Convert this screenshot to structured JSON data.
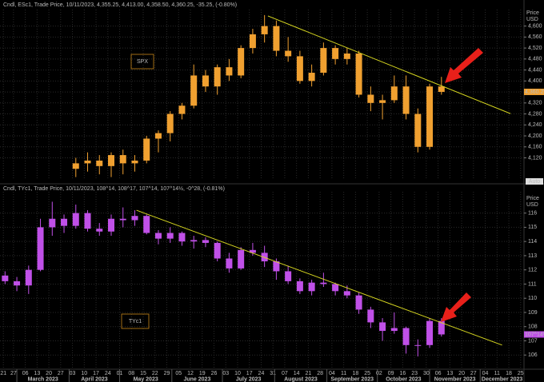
{
  "chart_data": [
    {
      "type": "candlestick",
      "header": "Cndl, ESc1, Trade Price, 10/11/2023, 4,355.25, 4,413.00, 4,358.50, 4,360.25, -35.25, (-0.80%)",
      "label": "SPX",
      "yaxis_title": [
        "Price",
        "USD"
      ],
      "button": "Auto",
      "color": "#f0a030",
      "label_color": "#c8861a",
      "xlim": [
        "2023-02-19",
        "2023-12-27"
      ],
      "ylim": [
        4040,
        4660
      ],
      "grid": true,
      "yticks": [
        {
          "value": 4120,
          "label": "4,120"
        },
        {
          "value": 4160,
          "label": "4,160"
        },
        {
          "value": 4200,
          "label": "4,200"
        },
        {
          "value": 4240,
          "label": "4,240"
        },
        {
          "value": 4280,
          "label": "4,280"
        },
        {
          "value": 4320,
          "label": "4,320"
        },
        {
          "value": 4360,
          "label": "4,360"
        },
        {
          "value": 4400,
          "label": "4,400"
        },
        {
          "value": 4440,
          "label": "4,440"
        },
        {
          "value": 4480,
          "label": "4,480"
        },
        {
          "value": 4520,
          "label": "4,520"
        },
        {
          "value": 4560,
          "label": "4,560"
        },
        {
          "value": 4600,
          "label": "4,600"
        }
      ],
      "x": [
        "2023-04-05",
        "2023-04-12",
        "2023-04-19",
        "2023-04-26",
        "2023-05-03",
        "2023-05-10",
        "2023-05-17",
        "2023-05-24",
        "2023-05-31",
        "2023-06-07",
        "2023-06-14",
        "2023-06-21",
        "2023-06-28",
        "2023-07-05",
        "2023-07-12",
        "2023-07-19",
        "2023-07-26",
        "2023-08-02",
        "2023-08-09",
        "2023-08-16",
        "2023-08-23",
        "2023-08-30",
        "2023-09-06",
        "2023-09-13",
        "2023-09-20",
        "2023-09-27",
        "2023-10-04",
        "2023-10-11",
        "2023-10-18",
        "2023-10-25",
        "2023-11-01",
        "2023-11-08"
      ],
      "open": [
        4080,
        4100,
        4110,
        4090,
        4130,
        4100,
        4110,
        4190,
        4210,
        4280,
        4310,
        4420,
        4380,
        4450,
        4420,
        4520,
        4570,
        4600,
        4510,
        4490,
        4400,
        4430,
        4520,
        4480,
        4500,
        4350,
        4320,
        4330,
        4380,
        4280,
        4160,
        4380
      ],
      "high": [
        4120,
        4140,
        4130,
        4140,
        4150,
        4130,
        4200,
        4220,
        4290,
        4320,
        4460,
        4440,
        4460,
        4480,
        4530,
        4590,
        4640,
        4620,
        4560,
        4510,
        4460,
        4540,
        4530,
        4520,
        4510,
        4380,
        4350,
        4420,
        4420,
        4300,
        4390,
        4415
      ],
      "low": [
        4050,
        4070,
        4060,
        4050,
        4060,
        4070,
        4100,
        4140,
        4180,
        4260,
        4300,
        4360,
        4350,
        4400,
        4410,
        4500,
        4540,
        4490,
        4470,
        4390,
        4380,
        4420,
        4460,
        4460,
        4340,
        4290,
        4260,
        4320,
        4260,
        4140,
        4150,
        4350
      ],
      "close": [
        4100,
        4110,
        4090,
        4130,
        4100,
        4110,
        4190,
        4210,
        4280,
        4310,
        4420,
        4380,
        4450,
        4420,
        4520,
        4570,
        4600,
        4510,
        4490,
        4400,
        4430,
        4520,
        4480,
        4500,
        4350,
        4320,
        4330,
        4380,
        4280,
        4160,
        4380,
        4360.25
      ],
      "last_price": {
        "value": 4360.25,
        "label": "4,360.25"
      },
      "trendline": {
        "x": [
          "2023-07-28",
          "2023-12-19"
        ],
        "y": [
          4637,
          4281
        ],
        "color": "#d8d820"
      }
    },
    {
      "type": "candlestick",
      "header": "Cndl, TYc1, Trade Price, 10/11/2023, 108^14, 108^17, 107^14, 107^14½, -0^28, (-0.81%)",
      "label": "TYc1",
      "yaxis_title": [
        "Price",
        "USD"
      ],
      "color": "#c050e8",
      "label_color": "#c8861a",
      "xlim": [
        "2023-02-19",
        "2023-12-27"
      ],
      "ylim": [
        105,
        117.5
      ],
      "grid": true,
      "yticks": [
        106,
        107,
        108,
        109,
        110,
        111,
        112,
        113,
        114,
        115,
        116
      ],
      "x": [
        "2023-02-22",
        "2023-03-01",
        "2023-03-08",
        "2023-03-15",
        "2023-03-22",
        "2023-03-29",
        "2023-04-05",
        "2023-04-12",
        "2023-04-19",
        "2023-04-26",
        "2023-05-03",
        "2023-05-10",
        "2023-05-17",
        "2023-05-24",
        "2023-05-31",
        "2023-06-07",
        "2023-06-14",
        "2023-06-21",
        "2023-06-28",
        "2023-07-05",
        "2023-07-12",
        "2023-07-19",
        "2023-07-26",
        "2023-08-02",
        "2023-08-09",
        "2023-08-16",
        "2023-08-23",
        "2023-08-30",
        "2023-09-06",
        "2023-09-13",
        "2023-09-20",
        "2023-09-27",
        "2023-10-04",
        "2023-10-11",
        "2023-10-18",
        "2023-10-25",
        "2023-11-01",
        "2023-11-08"
      ],
      "open": [
        111.6,
        111.2,
        110.9,
        112.0,
        115.0,
        115.6,
        115.1,
        116.0,
        114.9,
        114.7,
        115.6,
        115.5,
        115.8,
        114.6,
        114.2,
        114.6,
        114.0,
        114.1,
        113.9,
        112.8,
        112.1,
        113.4,
        113.2,
        112.6,
        111.9,
        111.2,
        110.5,
        111.1,
        111.0,
        110.5,
        110.2,
        109.2,
        108.3,
        107.7,
        107.9,
        106.7,
        106.7,
        108.4
      ],
      "high": [
        111.9,
        111.5,
        112.3,
        115.6,
        116.8,
        115.9,
        116.6,
        116.2,
        115.3,
        115.9,
        116.4,
        116.2,
        115.9,
        114.8,
        115.0,
        114.7,
        114.4,
        114.3,
        114.0,
        113.2,
        113.6,
        113.9,
        113.7,
        112.8,
        112.3,
        111.4,
        111.3,
        111.8,
        111.1,
        110.9,
        110.4,
        109.4,
        108.6,
        109.0,
        108.0,
        107.1,
        108.6,
        108.6
      ],
      "low": [
        111.0,
        110.5,
        110.3,
        111.9,
        114.4,
        114.6,
        114.9,
        114.7,
        114.4,
        114.4,
        115.0,
        115.1,
        114.5,
        113.8,
        113.9,
        113.7,
        113.5,
        113.6,
        112.6,
        111.8,
        112.0,
        113.0,
        112.2,
        111.3,
        111.0,
        110.3,
        110.2,
        110.8,
        110.2,
        110.0,
        108.9,
        107.9,
        107.0,
        107.5,
        106.1,
        105.9,
        106.5,
        107.3
      ],
      "close": [
        111.2,
        110.9,
        112.0,
        115.0,
        115.6,
        115.1,
        116.0,
        114.9,
        114.7,
        115.6,
        115.5,
        115.8,
        114.6,
        114.2,
        114.6,
        114.0,
        114.1,
        113.9,
        112.8,
        112.1,
        113.4,
        113.2,
        112.6,
        111.9,
        111.2,
        110.5,
        111.1,
        111.0,
        110.5,
        110.2,
        109.2,
        108.3,
        107.7,
        107.9,
        106.7,
        106.7,
        108.4,
        107.45
      ],
      "last_price": {
        "value": 107.45,
        "label": "107^14½"
      },
      "trendline": {
        "x": [
          "2023-05-11",
          "2023-12-14"
        ],
        "y": [
          116.2,
          106.7
        ],
        "color": "#d8d820"
      },
      "xticks": [
        {
          "value": "2023-02-21",
          "label": "21"
        },
        {
          "value": "2023-02-27",
          "label": "27"
        },
        {
          "value": "2023-03-06",
          "label": "06"
        },
        {
          "value": "2023-03-13",
          "label": "13"
        },
        {
          "value": "2023-03-20",
          "label": "20"
        },
        {
          "value": "2023-03-27",
          "label": "27"
        },
        {
          "value": "2023-04-03",
          "label": "03"
        },
        {
          "value": "2023-04-10",
          "label": "10"
        },
        {
          "value": "2023-04-17",
          "label": "17"
        },
        {
          "value": "2023-04-24",
          "label": "24"
        },
        {
          "value": "2023-05-01",
          "label": "01"
        },
        {
          "value": "2023-05-08",
          "label": "08"
        },
        {
          "value": "2023-05-15",
          "label": "15"
        },
        {
          "value": "2023-05-22",
          "label": "22"
        },
        {
          "value": "2023-05-29",
          "label": "29"
        },
        {
          "value": "2023-06-05",
          "label": "05"
        },
        {
          "value": "2023-06-12",
          "label": "12"
        },
        {
          "value": "2023-06-19",
          "label": "19"
        },
        {
          "value": "2023-06-26",
          "label": "26"
        },
        {
          "value": "2023-07-03",
          "label": "03"
        },
        {
          "value": "2023-07-10",
          "label": "10"
        },
        {
          "value": "2023-07-17",
          "label": "17"
        },
        {
          "value": "2023-07-24",
          "label": "24"
        },
        {
          "value": "2023-07-31",
          "label": "31"
        },
        {
          "value": "2023-08-07",
          "label": "07"
        },
        {
          "value": "2023-08-14",
          "label": "14"
        },
        {
          "value": "2023-08-21",
          "label": "21"
        },
        {
          "value": "2023-08-28",
          "label": "28"
        },
        {
          "value": "2023-09-04",
          "label": "04"
        },
        {
          "value": "2023-09-11",
          "label": "11"
        },
        {
          "value": "2023-09-18",
          "label": "18"
        },
        {
          "value": "2023-09-25",
          "label": "25"
        },
        {
          "value": "2023-10-02",
          "label": "02"
        },
        {
          "value": "2023-10-09",
          "label": "09"
        },
        {
          "value": "2023-10-16",
          "label": "16"
        },
        {
          "value": "2023-10-23",
          "label": "23"
        },
        {
          "value": "2023-10-30",
          "label": "30"
        },
        {
          "value": "2023-11-06",
          "label": "06"
        },
        {
          "value": "2023-11-13",
          "label": "13"
        },
        {
          "value": "2023-11-20",
          "label": "20"
        },
        {
          "value": "2023-11-27",
          "label": "27"
        },
        {
          "value": "2023-12-04",
          "label": "04"
        },
        {
          "value": "2023-12-11",
          "label": "11"
        },
        {
          "value": "2023-12-18",
          "label": "18"
        },
        {
          "value": "2023-12-25",
          "label": "25"
        }
      ],
      "months": [
        {
          "value": "2023-03",
          "label": "March 2023"
        },
        {
          "value": "2023-04",
          "label": "April 2023"
        },
        {
          "value": "2023-05",
          "label": "May 2023"
        },
        {
          "value": "2023-06",
          "label": "June 2023"
        },
        {
          "value": "2023-07",
          "label": "July 2023"
        },
        {
          "value": "2023-08",
          "label": "August 2023"
        },
        {
          "value": "2023-09",
          "label": "September 2023"
        },
        {
          "value": "2023-10",
          "label": "October 2023"
        },
        {
          "value": "2023-11",
          "label": "November 2023"
        },
        {
          "value": "2023-12",
          "label": "December 2023"
        }
      ]
    }
  ]
}
